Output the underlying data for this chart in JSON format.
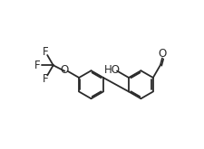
{
  "bg_color": "#ffffff",
  "line_color": "#2a2a2a",
  "line_width": 1.3,
  "font_size": 8.5,
  "r": 0.62,
  "rcx": 6.7,
  "rcy": 3.4,
  "lcx": 4.5,
  "lcy": 3.4,
  "xlim": [
    0.5,
    9.5
  ],
  "ylim": [
    1.2,
    6.5
  ]
}
